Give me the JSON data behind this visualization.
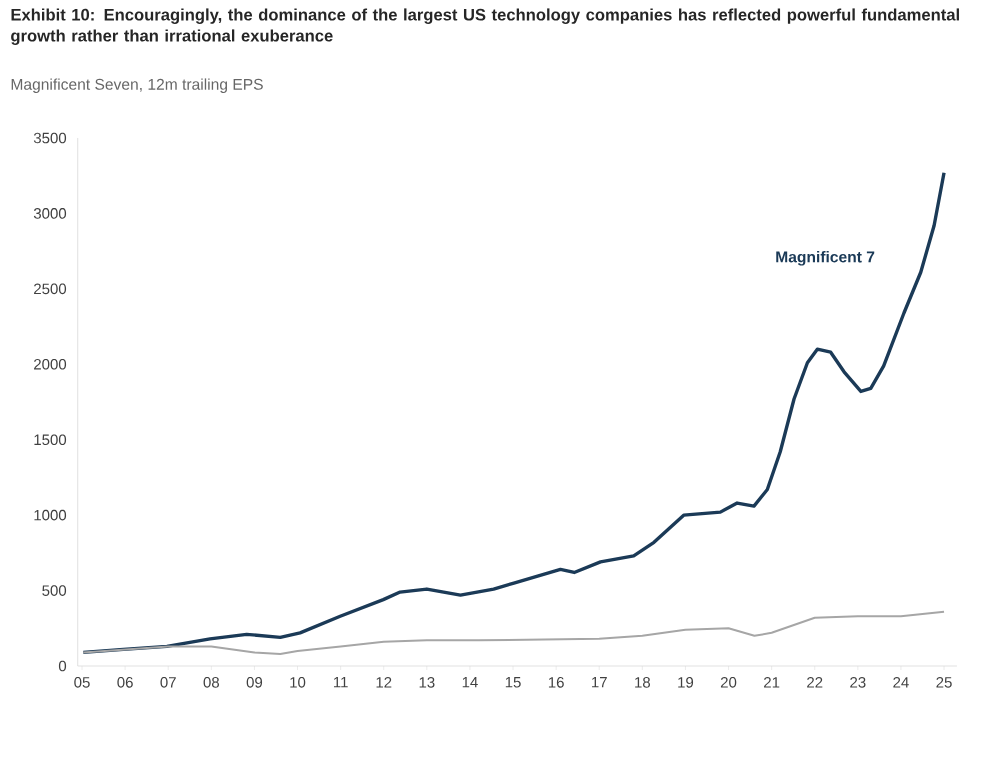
{
  "chart_data": {
    "type": "line",
    "title": "Exhibit 10: Encouragingly, the dominance of the largest US technology companies has reflected powerful fundamental growth rather than irrational exuberance",
    "subtitle": "Magnificent Seven, 12m trailing EPS",
    "series": [
      {
        "name": "Magnificent 7",
        "color": "#1b3a57",
        "x": [
          2005.03,
          2005.96,
          2006.97,
          2007.97,
          2008.82,
          2009.6,
          2010.06,
          2010.99,
          2011.99,
          2012.38,
          2013.0,
          2013.78,
          2014.55,
          2015.02,
          2016.1,
          2016.42,
          2017.03,
          2017.8,
          2018.27,
          2018.96,
          2019.81,
          2020.2,
          2020.59,
          2020.9,
          2021.2,
          2021.52,
          2021.83,
          2022.06,
          2022.37,
          2022.68,
          2023.07,
          2023.3,
          2023.6,
          2024.07,
          2024.46,
          2024.77,
          2025.0
        ],
        "values": [
          90,
          110,
          130,
          180,
          210,
          190,
          220,
          330,
          440,
          490,
          510,
          470,
          510,
          550,
          640,
          620,
          690,
          730,
          820,
          1000,
          1020,
          1080,
          1060,
          1170,
          1420,
          1770,
          2010,
          2100,
          2080,
          1950,
          1820,
          1840,
          1990,
          2340,
          2610,
          2920,
          3270
        ]
      },
      {
        "color": "#a6a6a6",
        "x": [
          2005.03,
          2007.0,
          2008.0,
          2009.0,
          2009.6,
          2010.0,
          2011.0,
          2012.0,
          2013.0,
          2014.2,
          2017.0,
          2018.0,
          2019.0,
          2020.0,
          2020.6,
          2021.0,
          2022.0,
          2023.0,
          2024.0,
          2025.0
        ],
        "values": [
          90,
          130,
          130,
          90,
          80,
          100,
          130,
          160,
          170,
          170,
          180,
          200,
          240,
          250,
          200,
          220,
          320,
          330,
          330,
          360
        ]
      }
    ],
    "xlim": [
      2004.9,
      2025.3
    ],
    "xticks": [
      {
        "value": 2005,
        "label": "05"
      },
      {
        "value": 2006,
        "label": "06"
      },
      {
        "value": 2007,
        "label": "07"
      },
      {
        "value": 2008,
        "label": "08"
      },
      {
        "value": 2009,
        "label": "09"
      },
      {
        "value": 2010,
        "label": "10"
      },
      {
        "value": 2011,
        "label": "11"
      },
      {
        "value": 2012,
        "label": "12"
      },
      {
        "value": 2013,
        "label": "13"
      },
      {
        "value": 2014,
        "label": "14"
      },
      {
        "value": 2015,
        "label": "15"
      },
      {
        "value": 2016,
        "label": "16"
      },
      {
        "value": 2017,
        "label": "17"
      },
      {
        "value": 2018,
        "label": "18"
      },
      {
        "value": 2019,
        "label": "19"
      },
      {
        "value": 2020,
        "label": "20"
      },
      {
        "value": 2021,
        "label": "21"
      },
      {
        "value": 2022,
        "label": "22"
      },
      {
        "value": 2023,
        "label": "23"
      },
      {
        "value": 2024,
        "label": "24"
      },
      {
        "value": 2025,
        "label": "25"
      }
    ],
    "ylim": [
      0,
      3500
    ],
    "yticks": [
      0,
      500,
      1000,
      1500,
      2000,
      2500,
      3000,
      3500
    ]
  }
}
